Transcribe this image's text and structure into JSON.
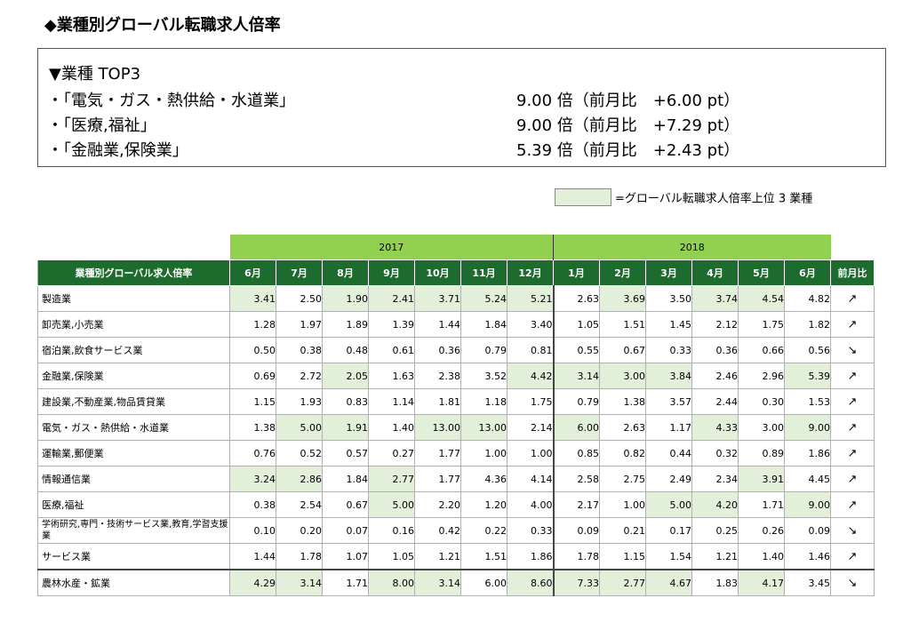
{
  "title": "◆業種別グローバル転職求人倍率",
  "summary": {
    "heading": "▼業種 TOP3",
    "items": [
      {
        "name": "・「電気・ガス・熱供給・水道業」",
        "value": "9.00 倍（前月比　+6.00 pt）"
      },
      {
        "name": "・「医療,福祉」",
        "value": "9.00 倍（前月比　+7.29 pt）"
      },
      {
        "name": "・「金融業,保険業」",
        "value": "5.39 倍（前月比　+2.43 pt）"
      }
    ]
  },
  "legend": "=グローバル転職求人倍率上位 3 業種",
  "table": {
    "years": [
      "2017",
      "2018"
    ],
    "header_label": "業種別グローバル求人倍率",
    "months": [
      "6月",
      "7月",
      "8月",
      "9月",
      "10月",
      "11月",
      "12月",
      "1月",
      "2月",
      "3月",
      "4月",
      "5月",
      "6月"
    ],
    "trend_label": "前月比",
    "highlight_color": "#e2efd9",
    "rows": [
      {
        "name": "製造業",
        "values": [
          "3.41",
          "2.50",
          "1.90",
          "2.41",
          "3.71",
          "5.24",
          "5.21",
          "2.63",
          "3.69",
          "3.50",
          "3.74",
          "4.54",
          "4.82"
        ],
        "hl": [
          1,
          0,
          1,
          1,
          1,
          1,
          1,
          0,
          1,
          0,
          1,
          1,
          0
        ],
        "trend": "↗"
      },
      {
        "name": "卸売業,小売業",
        "values": [
          "1.28",
          "1.97",
          "1.89",
          "1.39",
          "1.44",
          "1.84",
          "3.40",
          "1.05",
          "1.51",
          "1.45",
          "2.12",
          "1.75",
          "1.82"
        ],
        "hl": [
          0,
          0,
          0,
          0,
          0,
          0,
          0,
          0,
          0,
          0,
          0,
          0,
          0
        ],
        "trend": "↗"
      },
      {
        "name": "宿泊業,飲食サービス業",
        "values": [
          "0.50",
          "0.38",
          "0.48",
          "0.61",
          "0.36",
          "0.79",
          "0.81",
          "0.55",
          "0.67",
          "0.33",
          "0.36",
          "0.66",
          "0.56"
        ],
        "hl": [
          0,
          0,
          0,
          0,
          0,
          0,
          0,
          0,
          0,
          0,
          0,
          0,
          0
        ],
        "trend": "↘"
      },
      {
        "name": "金融業,保険業",
        "values": [
          "0.69",
          "2.72",
          "2.05",
          "1.63",
          "2.38",
          "3.52",
          "4.42",
          "3.14",
          "3.00",
          "3.84",
          "2.46",
          "2.96",
          "5.39"
        ],
        "hl": [
          0,
          0,
          1,
          0,
          0,
          0,
          1,
          1,
          1,
          1,
          0,
          0,
          1
        ],
        "trend": "↗"
      },
      {
        "name": "建設業,不動産業,物品賃貸業",
        "values": [
          "1.15",
          "1.93",
          "0.83",
          "1.14",
          "1.81",
          "1.18",
          "1.75",
          "0.79",
          "1.38",
          "3.57",
          "2.44",
          "0.30",
          "1.53"
        ],
        "hl": [
          0,
          0,
          0,
          0,
          0,
          0,
          0,
          0,
          0,
          0,
          0,
          0,
          0
        ],
        "trend": "↗"
      },
      {
        "name": "電気・ガス・熱供給・水道業",
        "values": [
          "1.38",
          "5.00",
          "1.91",
          "1.40",
          "13.00",
          "13.00",
          "2.14",
          "6.00",
          "2.63",
          "1.17",
          "4.33",
          "3.00",
          "9.00"
        ],
        "hl": [
          0,
          1,
          1,
          0,
          1,
          1,
          0,
          1,
          0,
          0,
          1,
          0,
          1
        ],
        "trend": "↗"
      },
      {
        "name": "運輸業,郵便業",
        "values": [
          "0.76",
          "0.52",
          "0.57",
          "0.27",
          "1.77",
          "1.00",
          "1.00",
          "0.85",
          "0.82",
          "0.44",
          "0.32",
          "0.89",
          "1.86"
        ],
        "hl": [
          0,
          0,
          0,
          0,
          0,
          0,
          0,
          0,
          0,
          0,
          0,
          0,
          0
        ],
        "trend": "↗"
      },
      {
        "name": "情報通信業",
        "values": [
          "3.24",
          "2.86",
          "1.84",
          "2.77",
          "1.77",
          "4.36",
          "4.14",
          "2.58",
          "2.75",
          "2.49",
          "2.34",
          "3.91",
          "4.45"
        ],
        "hl": [
          1,
          1,
          0,
          1,
          0,
          0,
          0,
          0,
          0,
          0,
          0,
          1,
          0
        ],
        "trend": "↗"
      },
      {
        "name": "医療,福祉",
        "values": [
          "0.38",
          "2.54",
          "0.67",
          "5.00",
          "2.20",
          "1.20",
          "4.00",
          "2.17",
          "1.00",
          "5.00",
          "4.20",
          "1.71",
          "9.00"
        ],
        "hl": [
          0,
          0,
          0,
          1,
          0,
          0,
          0,
          0,
          0,
          1,
          1,
          0,
          1
        ],
        "trend": "↗"
      },
      {
        "name": "学術研究,専門・技術サービス業,教育,学習支援業",
        "values": [
          "0.10",
          "0.20",
          "0.07",
          "0.16",
          "0.42",
          "0.22",
          "0.33",
          "0.09",
          "0.21",
          "0.17",
          "0.25",
          "0.26",
          "0.09"
        ],
        "hl": [
          0,
          0,
          0,
          0,
          0,
          0,
          0,
          0,
          0,
          0,
          0,
          0,
          0
        ],
        "trend": "↘",
        "two": true
      },
      {
        "name": "サービス業",
        "values": [
          "1.44",
          "1.78",
          "1.07",
          "1.05",
          "1.21",
          "1.51",
          "1.86",
          "1.78",
          "1.15",
          "1.54",
          "1.21",
          "1.40",
          "1.46"
        ],
        "hl": [
          0,
          0,
          0,
          0,
          0,
          0,
          0,
          0,
          0,
          0,
          0,
          0,
          0
        ],
        "trend": "↗"
      },
      {
        "name": "農林水産・鉱業",
        "values": [
          "4.29",
          "3.14",
          "1.71",
          "8.00",
          "3.14",
          "6.00",
          "8.60",
          "7.33",
          "2.77",
          "4.67",
          "1.83",
          "4.17",
          "3.45"
        ],
        "hl": [
          1,
          1,
          0,
          1,
          1,
          0,
          1,
          1,
          1,
          1,
          0,
          1,
          0
        ],
        "trend": "↘"
      }
    ]
  }
}
